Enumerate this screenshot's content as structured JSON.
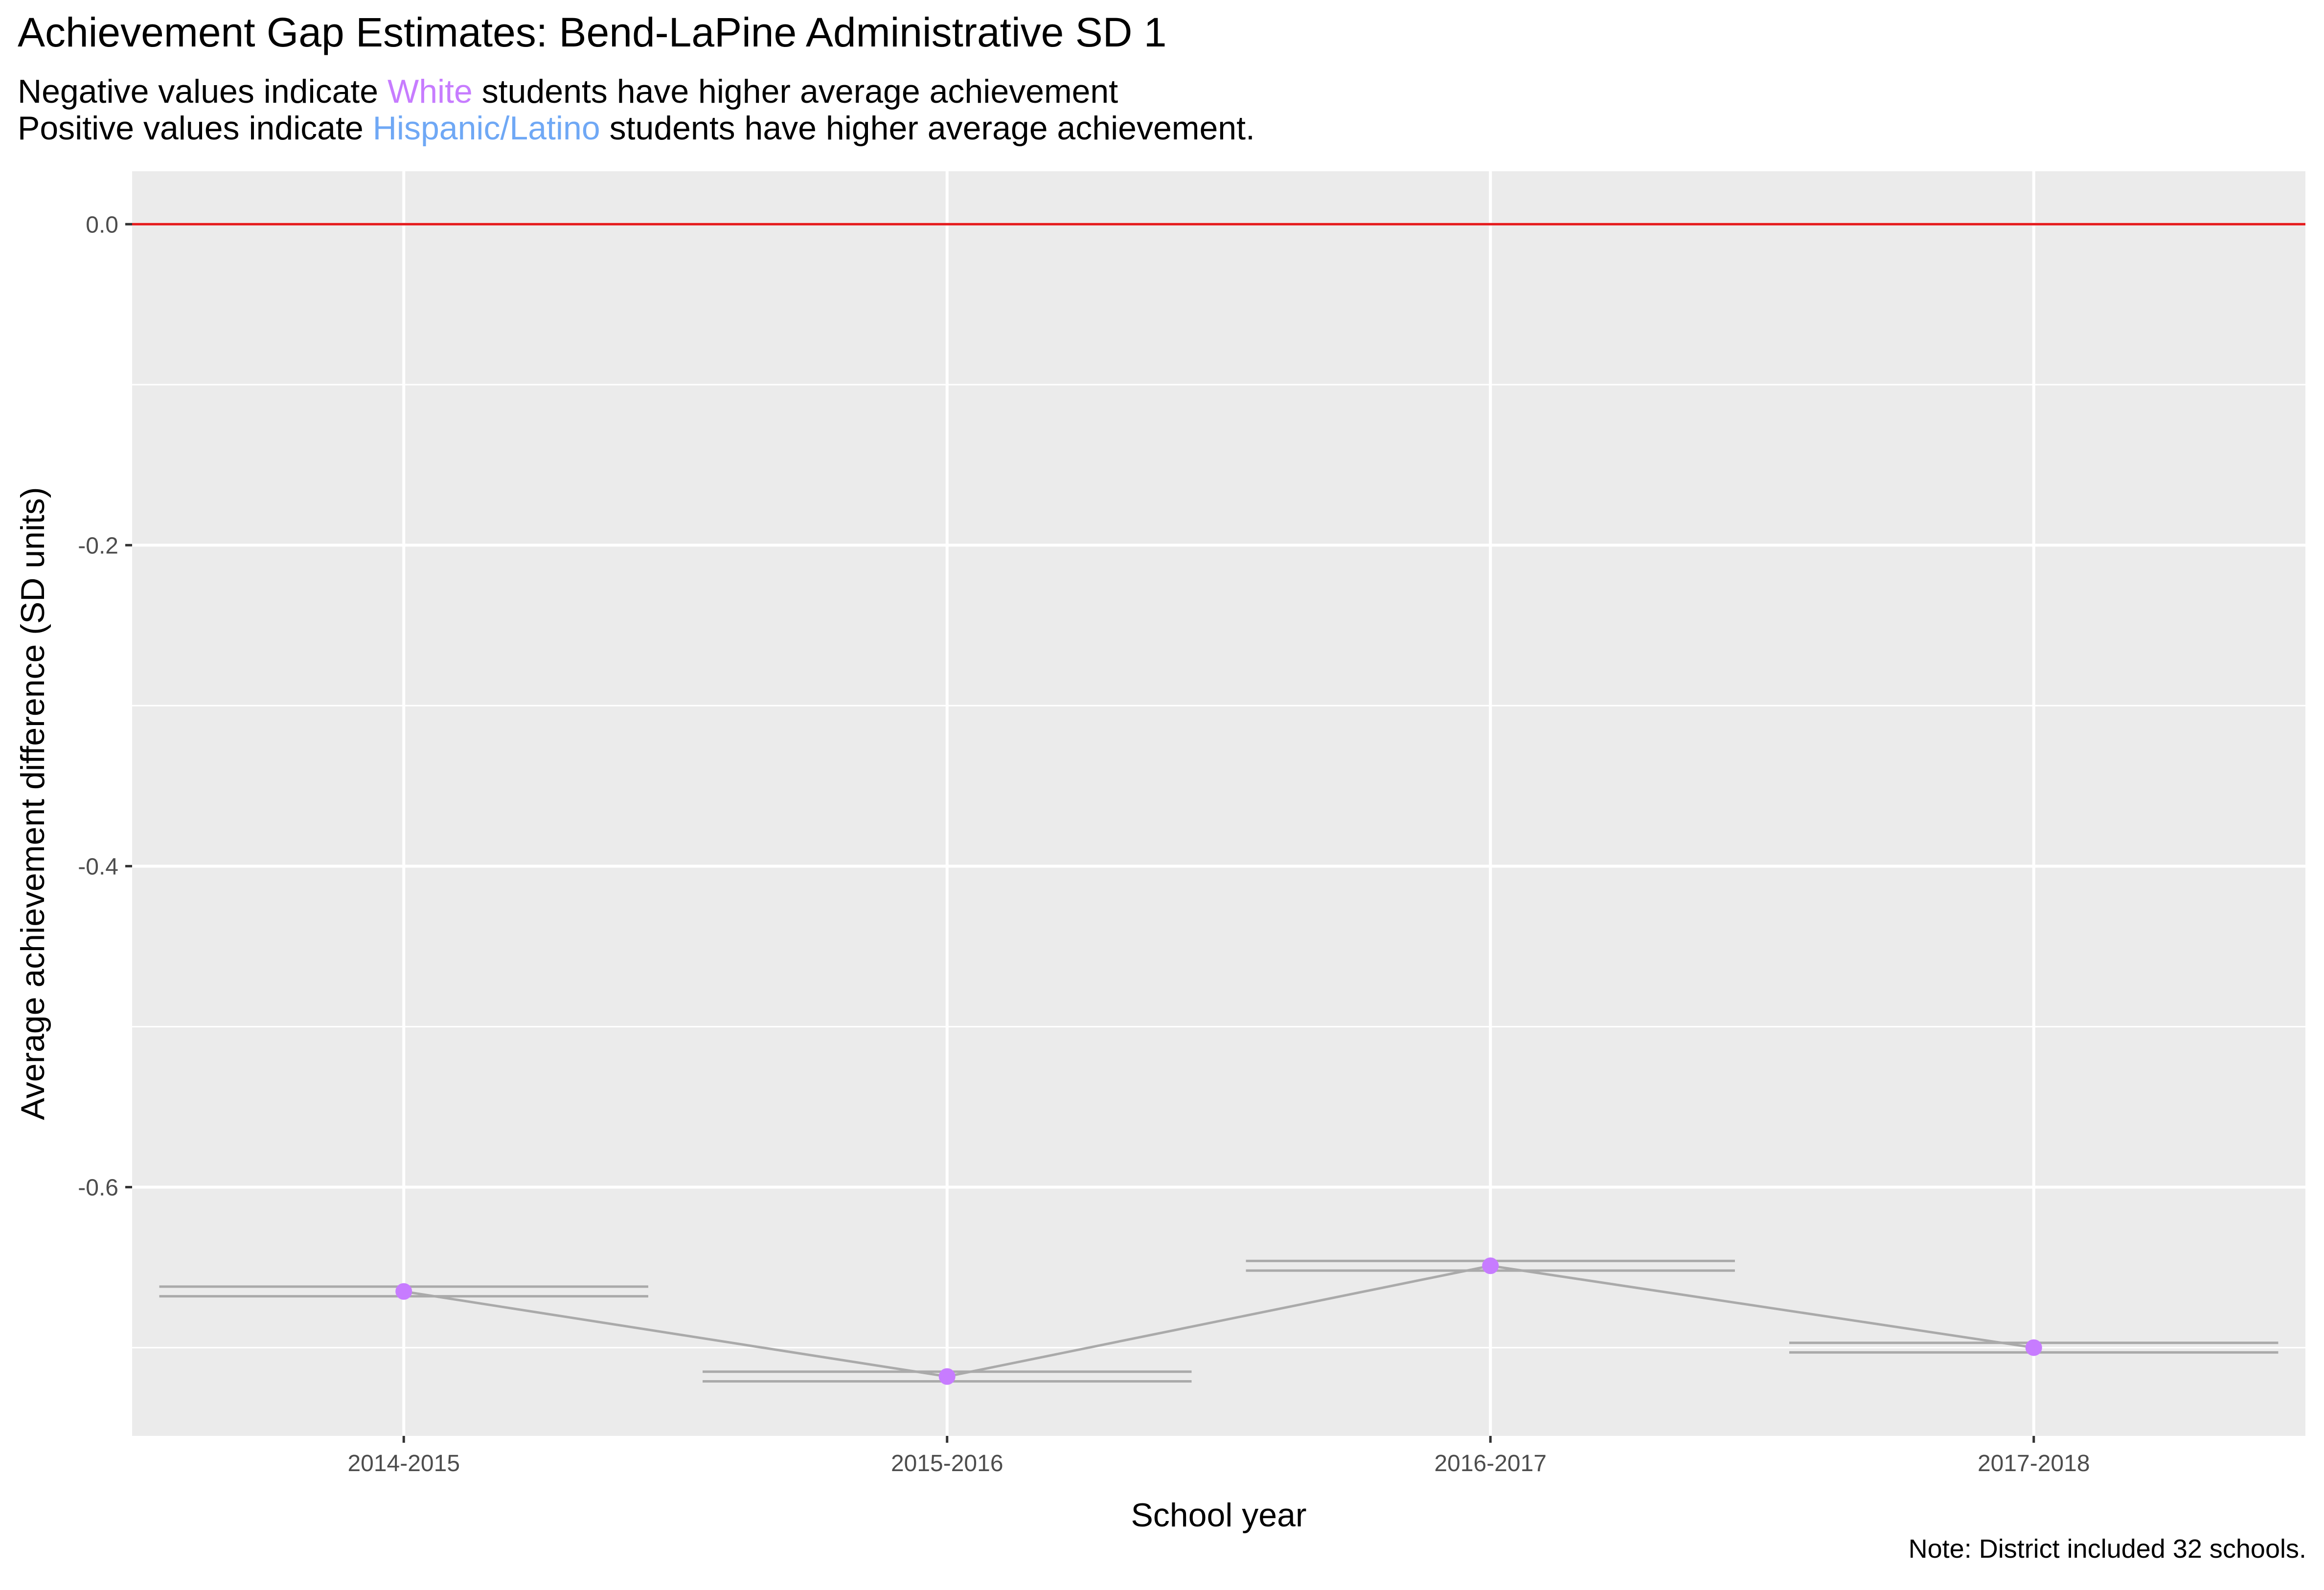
{
  "page": {
    "title": "Achievement Gap Estimates: Bend-LaPine Administrative SD 1",
    "subtitle_line1": {
      "before": "Negative values indicate ",
      "highlight": "White",
      "after": " students have higher average achievement"
    },
    "subtitle_line2": {
      "before": "Positive values indicate ",
      "highlight": "Hispanic/Latino",
      "after": " students have higher average achievement."
    },
    "caption": "Note: District included 32 schools.",
    "colors": {
      "white_group": "#c77cff",
      "hispanic_group": "#6fa8f5",
      "panel_background": "#ebebeb",
      "reference_line": "#e41a1c",
      "connector_line": "#aaaaaa",
      "interval_band": "#aaaaaa"
    }
  },
  "chart_data": {
    "type": "line",
    "xlabel": "School year",
    "ylabel": "Average achievement difference (SD units)",
    "categories": [
      "2014-2015",
      "2015-2016",
      "2016-2017",
      "2017-2018"
    ],
    "series": [
      {
        "values": [
          -0.665,
          -0.718,
          -0.649,
          -0.7
        ],
        "marker_color": "#c77cff"
      }
    ],
    "intervals": [
      {
        "low": -0.668,
        "high": -0.662
      },
      {
        "low": -0.721,
        "high": -0.715
      },
      {
        "low": -0.652,
        "high": -0.646
      },
      {
        "low": -0.703,
        "high": -0.697
      }
    ],
    "reference_line": 0.0,
    "ylim": [
      -0.755,
      0.033
    ],
    "y_ticks": [
      0.0,
      -0.2,
      -0.4,
      -0.6
    ],
    "y_tick_labels": [
      "0.0",
      "-0.2",
      "-0.4",
      "-0.6"
    ],
    "grid": true,
    "legend": "none"
  }
}
